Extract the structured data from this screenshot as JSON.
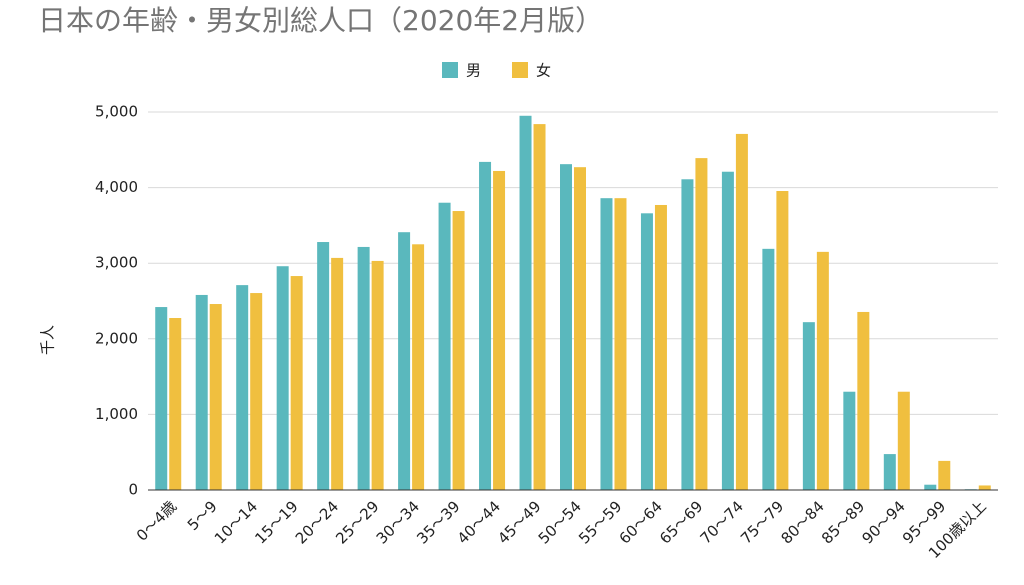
{
  "chart_data": {
    "type": "bar",
    "title": "日本の年齢・男女別総人口（2020年2月版）",
    "y_label": "千人",
    "categories": [
      "0〜4歳",
      "5〜9",
      "10〜14",
      "15〜19",
      "20〜24",
      "25〜29",
      "30〜34",
      "35〜39",
      "40〜44",
      "45〜49",
      "50〜54",
      "55〜59",
      "60〜64",
      "65〜69",
      "70〜74",
      "75〜79",
      "80〜84",
      "85〜89",
      "90〜94",
      "95〜99",
      "100歳以上"
    ],
    "series": [
      {
        "name": "男",
        "color": "#5ab8bd",
        "values": [
          2420,
          2580,
          2710,
          2960,
          3280,
          3215,
          3410,
          3800,
          4340,
          4950,
          4310,
          3860,
          3660,
          4110,
          4210,
          3190,
          2220,
          1300,
          475,
          70,
          10
        ]
      },
      {
        "name": "女",
        "color": "#f0bf3f",
        "values": [
          2275,
          2460,
          2605,
          2830,
          3070,
          3030,
          3250,
          3690,
          4220,
          4840,
          4270,
          3860,
          3770,
          4390,
          4710,
          3955,
          3150,
          2355,
          1300,
          385,
          60
        ]
      }
    ],
    "ylim": [
      0,
      5000
    ],
    "yticks": [
      0,
      {
        "value": 1000,
        "label": "1,000"
      },
      {
        "value": 2000,
        "label": "2,000"
      },
      {
        "value": 3000,
        "label": "3,000"
      },
      {
        "value": 4000,
        "label": "4,000"
      },
      {
        "value": 5000,
        "label": "5,000"
      }
    ],
    "grid": true,
    "legend": "top"
  }
}
